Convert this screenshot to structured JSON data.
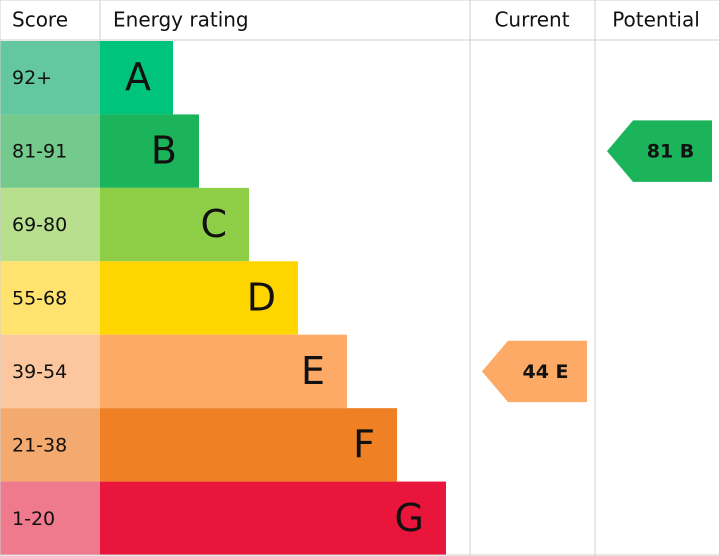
{
  "header": {
    "score": "Score",
    "rating": "Energy rating",
    "current": "Current",
    "potential": "Potential"
  },
  "rows": [
    {
      "score": "92+",
      "letter": "A",
      "score_color": "#63c8a0",
      "color": "#00c47b"
    },
    {
      "score": "81-91",
      "letter": "B",
      "score_color": "#74c98c",
      "color": "#1bb45a"
    },
    {
      "score": "69-80",
      "letter": "C",
      "score_color": "#b7df8d",
      "color": "#8dce46"
    },
    {
      "score": "55-68",
      "letter": "D",
      "score_color": "#ffe36e",
      "color": "#ffd500"
    },
    {
      "score": "39-54",
      "letter": "E",
      "score_color": "#fcc79e",
      "color": "#fcaa65"
    },
    {
      "score": "21-38",
      "letter": "F",
      "score_color": "#f4aa6e",
      "color": "#ef8023"
    },
    {
      "score": "1-20",
      "letter": "G",
      "score_color": "#f07a8d",
      "color": "#e9153b"
    }
  ],
  "current": {
    "label": "44 E",
    "color": "#fcaa65"
  },
  "potential": {
    "label": "81 B",
    "color": "#1bb45a"
  }
}
